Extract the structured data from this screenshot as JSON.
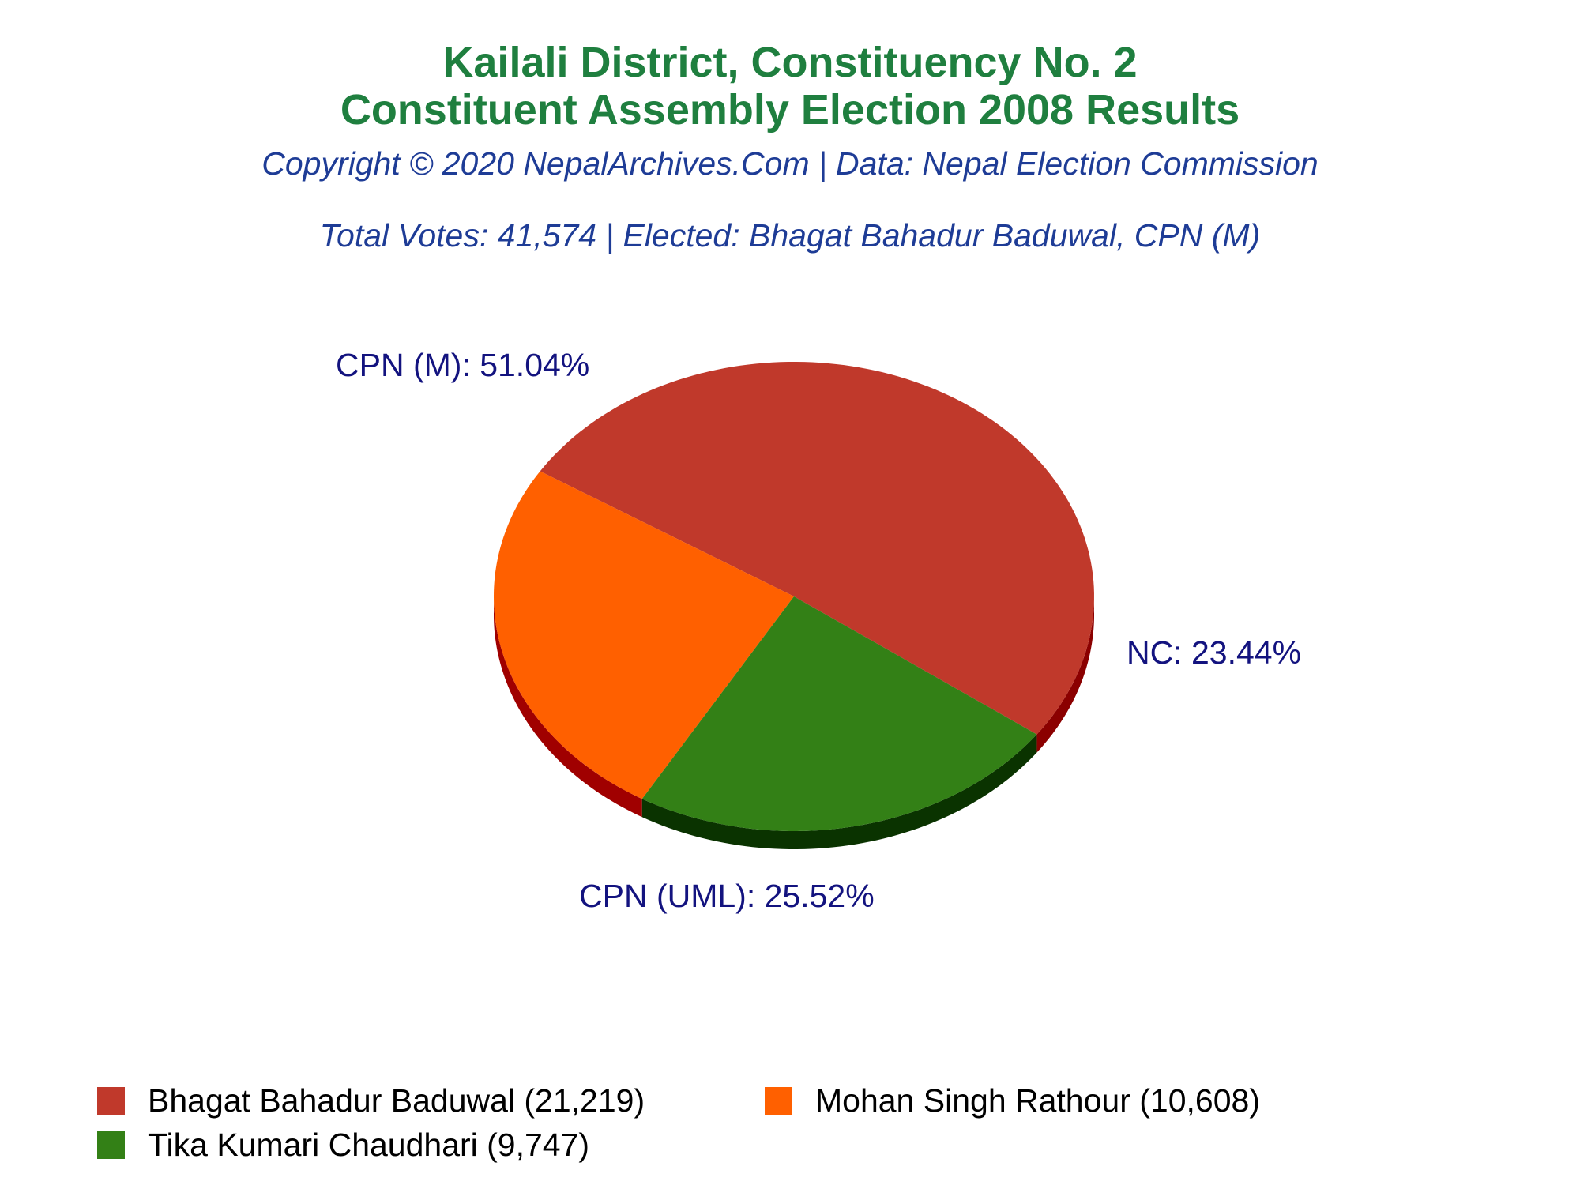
{
  "header": {
    "title_line1": "Kailali District, Constituency No. 2",
    "title_line2": "Constituent Assembly Election 2008 Results",
    "subtitle": "Copyright © 2020 NepalArchives.Com | Data: Nepal Election Commission",
    "summary": "Total Votes: 41,574 | Elected: Bhagat Bahadur Baduwal, CPN (M)"
  },
  "chart_data": {
    "type": "pie",
    "title": "Kailali District, Constituency No. 2 Constituent Assembly Election 2008 Results",
    "slices": [
      {
        "party": "CPN (M)",
        "candidate": "Bhagat Bahadur Baduwal",
        "votes": 21219,
        "percent": 51.04,
        "label": "CPN (M): 51.04%",
        "legend_label": "Bhagat Bahadur Baduwal (21,219)",
        "color": "#c0392b",
        "side_color": "#8b0000"
      },
      {
        "party": "CPN (UML)",
        "candidate": "Mohan Singh Rathour",
        "votes": 10608,
        "percent": 25.52,
        "label": "CPN (UML): 25.52%",
        "legend_label": "Mohan Singh Rathour (10,608)",
        "color": "#ff6000",
        "side_color": "#a00000"
      },
      {
        "party": "NC",
        "candidate": "Tika Kumari Chaudhari",
        "votes": 9747,
        "percent": 23.44,
        "label": "NC: 23.44%",
        "legend_label": "Tika Kumari Chaudhari (9,747)",
        "color": "#338016",
        "side_color": "#0a3300"
      }
    ],
    "legend_position": "bottom"
  }
}
